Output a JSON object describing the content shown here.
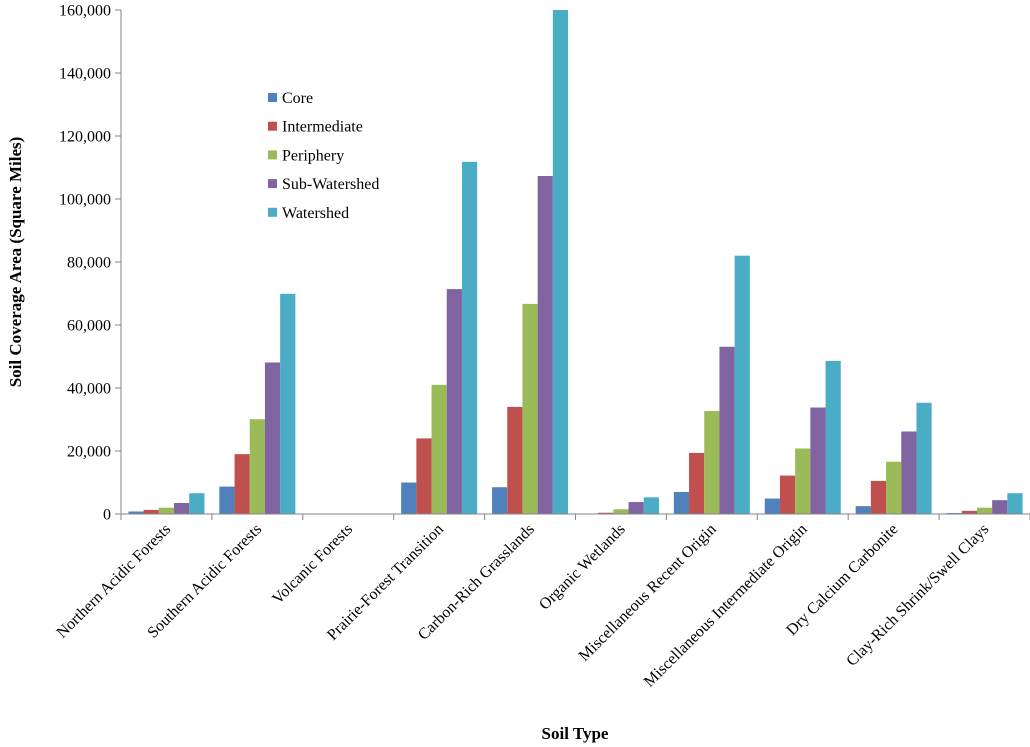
{
  "chart_data": {
    "type": "bar",
    "title": "",
    "xlabel": "Soil Type",
    "ylabel": "Soil Coverage Area (Square Miles)",
    "ylim": [
      0,
      160000
    ],
    "yticks": [
      0,
      20000,
      40000,
      60000,
      80000,
      100000,
      120000,
      140000,
      160000
    ],
    "ytick_labels": [
      "0",
      "20,000",
      "40,000",
      "60,000",
      "80,000",
      "100,000",
      "120,000",
      "140,000",
      "160,000"
    ],
    "grid": false,
    "legend_position": "upper-left inside plot",
    "categories": [
      "Northern Acidic Forests",
      "Southern Acidic Forests",
      "Volcanic Forests",
      "Prairie-Forest Transition",
      "Carbon-Rich Grasslands",
      "Organic Wetlands",
      "Miscellaneous Recent Origin",
      "Miscellaneous Intermediate Origin",
      "Dry Calcium Carbonite",
      "Clay-Rich Shrink/Swell Clays"
    ],
    "series": [
      {
        "name": "Core",
        "color": "#4f81bd",
        "values": [
          800,
          8700,
          0,
          10000,
          8500,
          150,
          7000,
          4900,
          2500,
          300
        ]
      },
      {
        "name": "Intermediate",
        "color": "#c0504d",
        "values": [
          1300,
          19000,
          0,
          24000,
          34000,
          400,
          19400,
          12200,
          10500,
          1000
        ]
      },
      {
        "name": "Periphery",
        "color": "#9bbb59",
        "values": [
          2000,
          30100,
          0,
          41000,
          66700,
          1500,
          32700,
          20800,
          16600,
          2000
        ]
      },
      {
        "name": "Sub-Watershed",
        "color": "#8064a2",
        "values": [
          3500,
          48100,
          0,
          71400,
          107300,
          3800,
          53100,
          33800,
          26200,
          4400
        ]
      },
      {
        "name": "Watershed",
        "color": "#4bacc6",
        "values": [
          6600,
          69900,
          0,
          111800,
          160000,
          5300,
          82000,
          48600,
          35300,
          6600
        ]
      }
    ]
  }
}
